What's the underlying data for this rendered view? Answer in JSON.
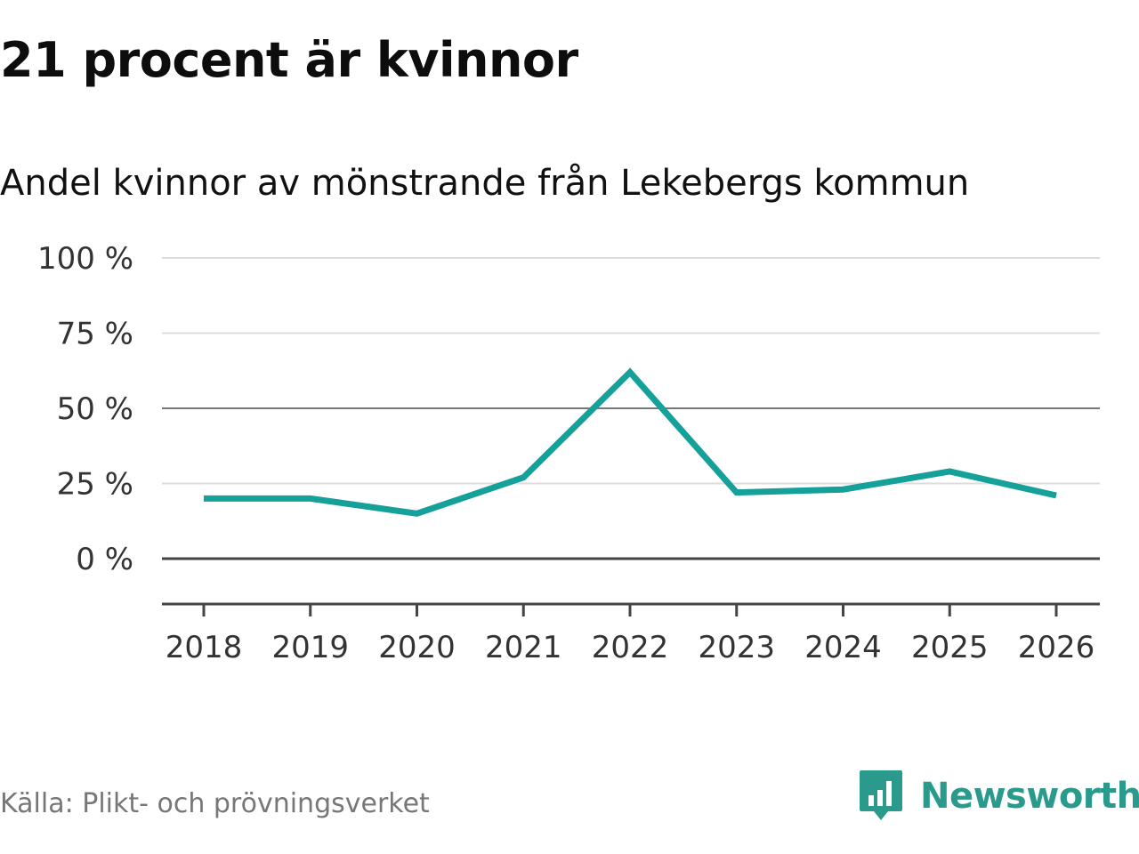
{
  "header": {
    "title": "21 procent är kvinnor"
  },
  "chart_data": {
    "type": "line",
    "title": "21 procent är kvinnor",
    "subtitle": "Andel kvinnor av mönstrande från Lekebergs kommun",
    "xlabel": "",
    "ylabel": "",
    "categories": [
      "2018",
      "2019",
      "2020",
      "2021",
      "2022",
      "2023",
      "2024",
      "2025",
      "2026"
    ],
    "series": [
      {
        "name": "Andel kvinnor",
        "values": [
          20,
          20,
          15,
          27,
          62,
          22,
          23,
          29,
          21
        ],
        "color": "#16a09a"
      }
    ],
    "ylim": [
      -15,
      100
    ],
    "yticks": [
      0,
      25,
      50,
      75,
      100
    ],
    "ytick_labels": [
      "0 %",
      "25 %",
      "50 %",
      "75 %",
      "100 %"
    ],
    "grid": true
  },
  "footer": {
    "source": "Källa: Plikt- och prövningsverket",
    "brand": "Newsworthy"
  },
  "colors": {
    "line": "#16a09a",
    "brand": "#2a9a8c",
    "grid": "#dddddd",
    "axis": "#444444"
  }
}
